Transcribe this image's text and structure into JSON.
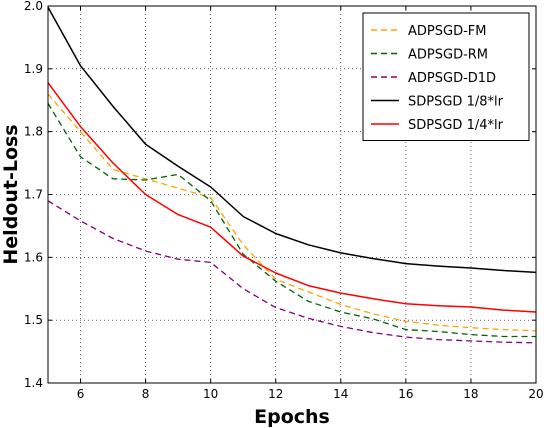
{
  "chart_data": {
    "type": "line",
    "xlabel": "Epochs",
    "ylabel": "Heldout-Loss",
    "xlim": [
      5,
      20
    ],
    "ylim": [
      1.4,
      2.0
    ],
    "xticks": [
      6,
      8,
      10,
      12,
      14,
      16,
      18,
      20
    ],
    "yticks": [
      1.4,
      1.5,
      1.6,
      1.7,
      1.8,
      1.9,
      2.0
    ],
    "grid": true,
    "legend_position": "top-right",
    "series": [
      {
        "name": "ADPSGD-FM",
        "color": "#ffa500",
        "dash": "dashed",
        "x": [
          5,
          6,
          7,
          8,
          9,
          10,
          11,
          12,
          13,
          14,
          15,
          16,
          17,
          18,
          19,
          20
        ],
        "y": [
          1.86,
          1.8,
          1.74,
          1.725,
          1.71,
          1.695,
          1.62,
          1.565,
          1.545,
          1.525,
          1.51,
          1.498,
          1.492,
          1.488,
          1.485,
          1.483
        ]
      },
      {
        "name": "ADPSGD-RM",
        "color": "#006400",
        "dash": "dashed",
        "x": [
          5,
          6,
          7,
          8,
          9,
          10,
          11,
          12,
          13,
          14,
          15,
          16,
          17,
          18,
          19,
          20
        ],
        "y": [
          1.845,
          1.76,
          1.725,
          1.723,
          1.732,
          1.69,
          1.605,
          1.562,
          1.53,
          1.513,
          1.502,
          1.485,
          1.482,
          1.477,
          1.474,
          1.474
        ]
      },
      {
        "name": "ADPSGD-D1D",
        "color": "#800080",
        "dash": "dashed",
        "x": [
          5,
          6,
          7,
          8,
          9,
          10,
          11,
          12,
          13,
          14,
          15,
          16,
          17,
          18,
          19,
          20
        ],
        "y": [
          1.69,
          1.658,
          1.63,
          1.61,
          1.597,
          1.592,
          1.55,
          1.52,
          1.503,
          1.49,
          1.48,
          1.473,
          1.469,
          1.467,
          1.465,
          1.464
        ]
      },
      {
        "name": "SDPSGD 1/8*lr",
        "color": "#000000",
        "dash": "solid",
        "x": [
          5,
          6,
          7,
          8,
          9,
          10,
          11,
          12,
          13,
          14,
          15,
          16,
          17,
          18,
          19,
          20
        ],
        "y": [
          1.998,
          1.905,
          1.84,
          1.78,
          1.745,
          1.712,
          1.665,
          1.638,
          1.62,
          1.607,
          1.598,
          1.59,
          1.586,
          1.583,
          1.579,
          1.576
        ]
      },
      {
        "name": "SDPSGD 1/4*lr",
        "color": "#ff0000",
        "dash": "solid",
        "x": [
          5,
          6,
          7,
          8,
          9,
          10,
          11,
          12,
          13,
          14,
          15,
          16,
          17,
          18,
          19,
          20
        ],
        "y": [
          1.878,
          1.808,
          1.75,
          1.7,
          1.668,
          1.648,
          1.602,
          1.575,
          1.555,
          1.543,
          1.534,
          1.526,
          1.523,
          1.521,
          1.516,
          1.513
        ]
      }
    ]
  }
}
